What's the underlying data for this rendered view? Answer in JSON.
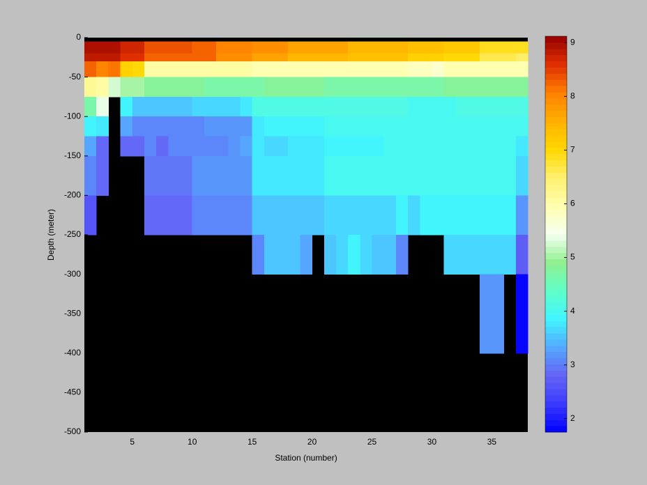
{
  "chart_data": {
    "type": "heatmap",
    "xlabel": "Station (number)",
    "ylabel": "Depth (meter)",
    "x_edges": [
      1,
      2,
      3,
      4,
      5,
      6,
      7,
      8,
      9,
      10,
      11,
      12,
      13,
      14,
      15,
      16,
      17,
      18,
      19,
      20,
      21,
      22,
      23,
      24,
      25,
      26,
      27,
      28,
      29,
      30,
      31,
      32,
      33,
      34,
      35,
      36,
      37,
      38
    ],
    "y_edges": [
      0,
      -5,
      -20,
      -30,
      -50,
      -75,
      -100,
      -125,
      -150,
      -175,
      -200,
      -225,
      -250,
      -300,
      -400,
      -500
    ],
    "z": [
      [
        null,
        null,
        null,
        null,
        null,
        null,
        null,
        null,
        null,
        null,
        null,
        null,
        null,
        null,
        null,
        null,
        null,
        null,
        null,
        null,
        null,
        null,
        null,
        null,
        null,
        null,
        null,
        null,
        null,
        null,
        null,
        null,
        null,
        null,
        null,
        null,
        null
      ],
      [
        9.0,
        9.0,
        9.0,
        8.7,
        8.7,
        8.4,
        8.4,
        8.4,
        8.4,
        8.3,
        8.3,
        8.0,
        8.0,
        8.0,
        7.9,
        7.9,
        7.9,
        7.7,
        7.7,
        7.7,
        7.7,
        7.7,
        7.5,
        7.5,
        7.5,
        7.5,
        7.5,
        7.3,
        7.3,
        7.3,
        7.2,
        7.2,
        7.2,
        6.9,
        6.9,
        6.9,
        6.9
      ],
      [
        8.8,
        8.8,
        8.8,
        8.6,
        8.6,
        8.3,
        8.3,
        8.3,
        8.3,
        8.2,
        8.2,
        7.9,
        7.9,
        7.9,
        7.7,
        7.7,
        7.7,
        7.5,
        7.5,
        7.5,
        7.5,
        7.5,
        7.3,
        7.3,
        7.3,
        7.3,
        7.3,
        7.1,
        7.1,
        7.1,
        7.0,
        7.0,
        7.0,
        6.6,
        6.6,
        6.6,
        6.5
      ],
      [
        8.2,
        8.0,
        8.1,
        7.1,
        7.0,
        6.1,
        6.1,
        6.1,
        6.1,
        6.1,
        6.1,
        6.1,
        6.1,
        6.1,
        6.0,
        6.0,
        6.0,
        6.0,
        6.0,
        6.0,
        6.0,
        6.0,
        6.0,
        6.0,
        6.0,
        6.0,
        6.0,
        5.8,
        5.8,
        5.7,
        6.0,
        6.0,
        6.0,
        6.0,
        6.0,
        6.0,
        6.0
      ],
      [
        6.2,
        6.1,
        5.3,
        5.0,
        5.0,
        4.8,
        4.8,
        4.8,
        4.8,
        4.8,
        4.7,
        4.7,
        4.7,
        4.7,
        4.7,
        4.8,
        4.8,
        4.8,
        4.8,
        4.8,
        4.7,
        4.7,
        4.7,
        4.7,
        4.7,
        4.7,
        4.7,
        4.7,
        4.7,
        4.7,
        4.8,
        4.8,
        4.8,
        4.8,
        4.8,
        4.8,
        4.8
      ],
      [
        4.7,
        5.4,
        null,
        3.9,
        3.5,
        3.5,
        3.5,
        3.5,
        3.5,
        3.6,
        3.6,
        3.6,
        3.6,
        3.8,
        4.1,
        4.1,
        4.1,
        4.1,
        4.1,
        4.1,
        4.1,
        4.1,
        4.1,
        4.1,
        4.1,
        4.1,
        4.1,
        4.0,
        4.0,
        4.0,
        4.0,
        4.1,
        4.1,
        4.1,
        4.1,
        4.1,
        4.1
      ],
      [
        3.9,
        3.8,
        null,
        3.3,
        3.1,
        3.1,
        3.1,
        3.1,
        3.1,
        3.1,
        3.2,
        3.2,
        3.2,
        3.2,
        3.8,
        3.9,
        3.9,
        3.9,
        3.9,
        3.9,
        4.0,
        4.0,
        4.0,
        4.0,
        4.0,
        4.0,
        4.0,
        4.0,
        4.0,
        4.0,
        4.0,
        4.0,
        4.0,
        4.0,
        4.0,
        4.0,
        4.0
      ],
      [
        3.3,
        2.9,
        null,
        2.8,
        2.8,
        3.1,
        2.9,
        3.1,
        3.1,
        3.1,
        3.1,
        3.1,
        3.2,
        3.3,
        3.8,
        3.7,
        3.7,
        3.8,
        3.8,
        3.8,
        3.9,
        3.9,
        3.9,
        3.9,
        3.9,
        4.0,
        4.0,
        4.0,
        4.0,
        4.0,
        4.0,
        4.0,
        4.0,
        4.0,
        4.0,
        4.0,
        3.8
      ],
      [
        3.1,
        2.8,
        null,
        null,
        null,
        3.0,
        3.0,
        3.0,
        3.0,
        3.2,
        3.2,
        3.2,
        3.2,
        3.2,
        3.8,
        3.8,
        3.8,
        3.8,
        3.8,
        3.8,
        4.0,
        4.0,
        4.0,
        4.0,
        4.0,
        4.0,
        4.0,
        4.0,
        4.0,
        4.0,
        4.0,
        4.0,
        4.0,
        4.0,
        4.0,
        4.0,
        3.6
      ],
      [
        3.1,
        2.8,
        null,
        null,
        null,
        3.0,
        3.0,
        3.0,
        3.0,
        3.2,
        3.2,
        3.2,
        3.2,
        3.2,
        3.8,
        3.8,
        3.8,
        3.8,
        3.8,
        3.8,
        4.0,
        4.0,
        4.0,
        4.0,
        4.0,
        4.0,
        4.0,
        4.0,
        4.0,
        4.0,
        4.0,
        4.0,
        4.0,
        4.0,
        4.0,
        4.0,
        3.6
      ],
      [
        2.6,
        null,
        null,
        null,
        null,
        2.9,
        2.9,
        2.9,
        2.9,
        3.1,
        3.1,
        3.1,
        3.1,
        3.1,
        3.5,
        3.5,
        3.5,
        3.5,
        3.5,
        3.5,
        3.7,
        3.7,
        3.7,
        3.7,
        3.7,
        3.7,
        3.9,
        3.6,
        3.9,
        3.9,
        3.9,
        3.9,
        3.9,
        3.9,
        3.9,
        3.9,
        3.2
      ],
      [
        2.6,
        null,
        null,
        null,
        null,
        2.9,
        2.9,
        2.9,
        2.9,
        3.1,
        3.1,
        3.1,
        3.1,
        3.1,
        3.5,
        3.5,
        3.5,
        3.5,
        3.5,
        3.5,
        3.7,
        3.7,
        3.7,
        3.7,
        3.7,
        3.7,
        3.9,
        3.6,
        3.9,
        3.9,
        3.9,
        3.9,
        3.9,
        3.9,
        3.9,
        3.9,
        3.2
      ],
      [
        null,
        null,
        null,
        null,
        null,
        null,
        null,
        null,
        null,
        null,
        null,
        null,
        null,
        null,
        3.1,
        3.5,
        3.5,
        3.5,
        3.3,
        null,
        3.5,
        3.7,
        3.9,
        3.6,
        3.5,
        3.5,
        3.1,
        null,
        null,
        null,
        3.6,
        3.6,
        3.6,
        3.6,
        3.6,
        3.6,
        2.7
      ],
      [
        null,
        null,
        null,
        null,
        null,
        null,
        null,
        null,
        null,
        null,
        null,
        null,
        null,
        null,
        null,
        null,
        null,
        null,
        null,
        null,
        null,
        null,
        null,
        null,
        null,
        null,
        null,
        null,
        null,
        null,
        null,
        null,
        null,
        3.2,
        3.2,
        null,
        1.8
      ],
      [
        null,
        null,
        null,
        null,
        null,
        null,
        null,
        null,
        null,
        null,
        null,
        null,
        null,
        null,
        null,
        null,
        null,
        null,
        null,
        null,
        null,
        null,
        null,
        null,
        null,
        null,
        null,
        null,
        null,
        null,
        null,
        null,
        null,
        null,
        null,
        null,
        null
      ]
    ],
    "xlim": [
      1,
      38
    ],
    "ylim": [
      -500,
      0
    ],
    "xticks": [
      5,
      10,
      15,
      20,
      25,
      30,
      35
    ],
    "yticks": [
      0,
      -50,
      -100,
      -150,
      -200,
      -250,
      -300,
      -350,
      -400,
      -450,
      -500
    ],
    "missing_color": "#000000",
    "clim": [
      1.75,
      9.12
    ],
    "cticks": [
      2,
      3,
      4,
      5,
      6,
      7,
      8,
      9
    ],
    "colormap": [
      "#0000ff",
      "#3a3aff",
      "#6464f5",
      "#55a8ff",
      "#40f5ff",
      "#60ffc8",
      "#90f090",
      "#f5fff0",
      "#ffffb0",
      "#fff070",
      "#ffd800",
      "#ffb000",
      "#ff8000",
      "#e03000",
      "#960000"
    ],
    "colormap_levels": 64
  }
}
